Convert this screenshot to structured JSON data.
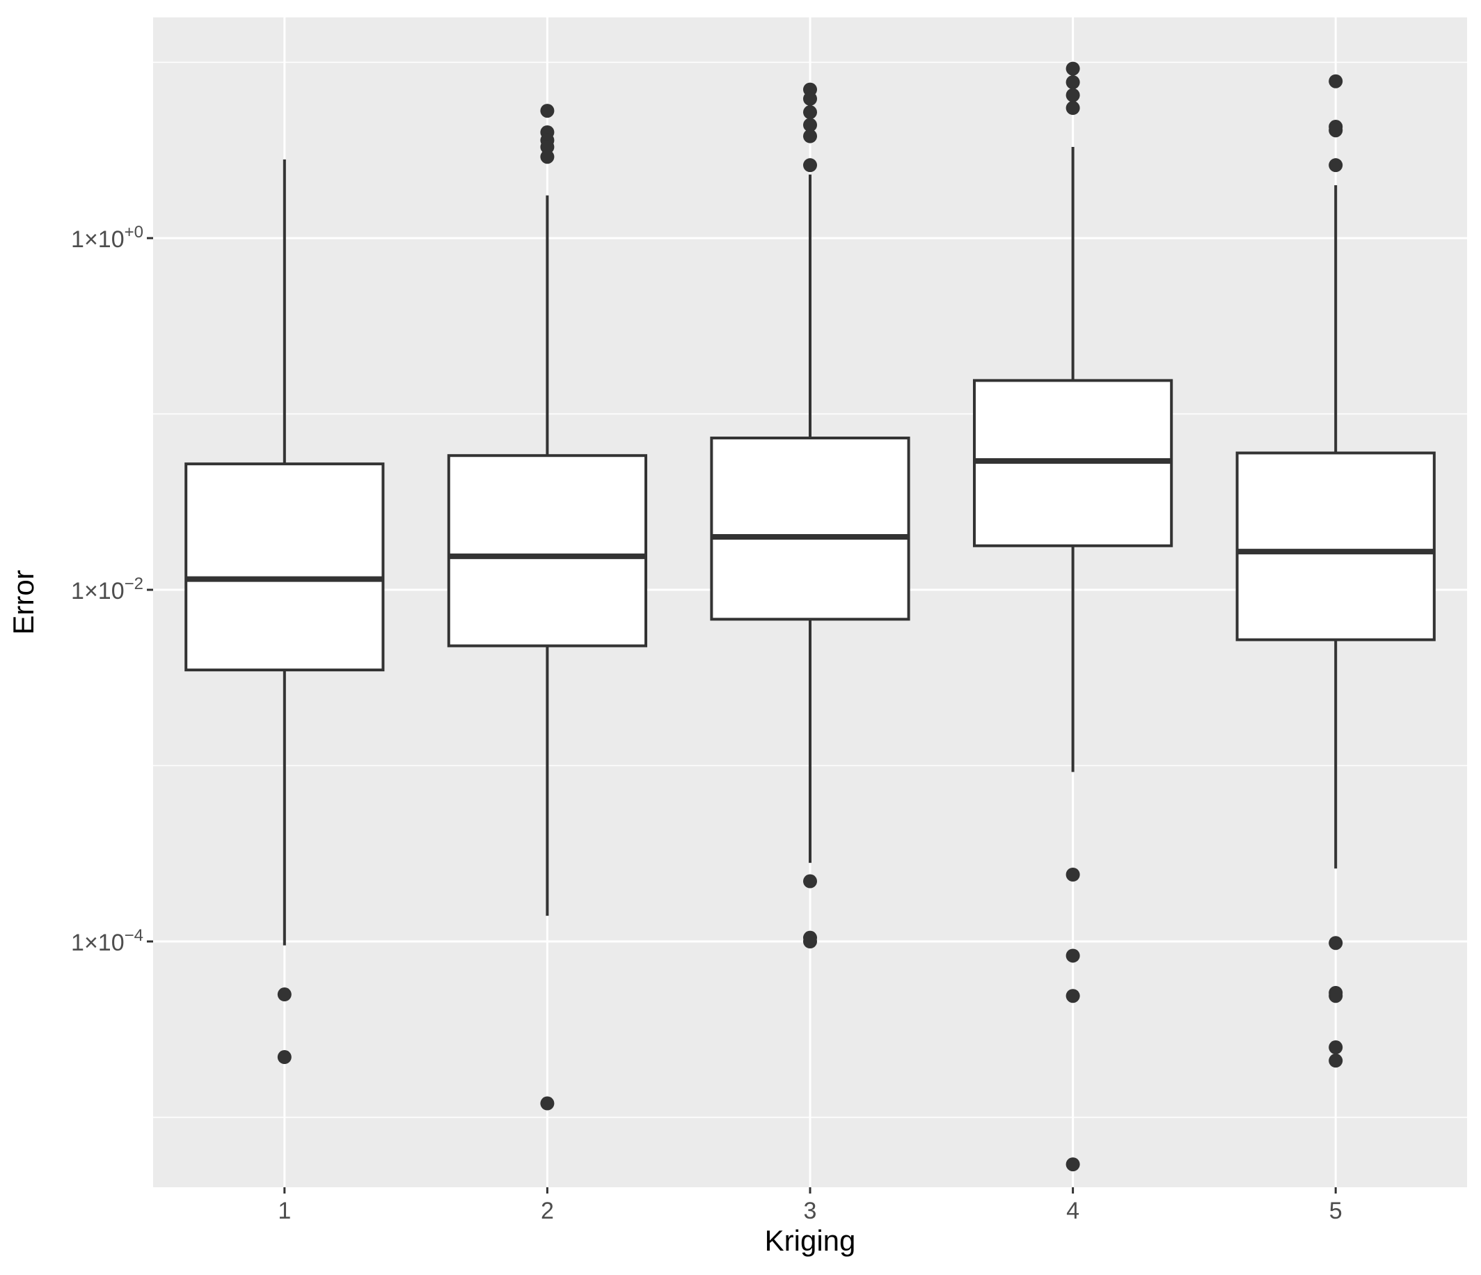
{
  "chart_data": {
    "type": "box",
    "xlabel": "Kriging",
    "ylabel": "Error",
    "categories": [
      "1",
      "2",
      "3",
      "4",
      "5"
    ],
    "y_scale": "log10",
    "ylim": [
      4e-06,
      18
    ],
    "y_ticks": [
      {
        "value": 1,
        "base": "1×10",
        "exp": "+0"
      },
      {
        "value": 0.01,
        "base": "1×10",
        "exp": "−2"
      },
      {
        "value": 0.0001,
        "base": "1×10",
        "exp": "−4"
      }
    ],
    "grid": true,
    "boxes": [
      {
        "category": "1",
        "lower_whisker": 9.5e-05,
        "q1": 0.0035,
        "median": 0.0115,
        "q3": 0.052,
        "upper_whisker": 2.8,
        "outliers": [
          5e-05,
          2.2e-05
        ]
      },
      {
        "category": "2",
        "lower_whisker": 0.00014,
        "q1": 0.0048,
        "median": 0.0155,
        "q3": 0.058,
        "upper_whisker": 1.75,
        "outliers": [
          5.3,
          4.0,
          3.6,
          3.3,
          2.9,
          1.2e-05
        ]
      },
      {
        "category": "3",
        "lower_whisker": 0.00028,
        "q1": 0.0068,
        "median": 0.02,
        "q3": 0.073,
        "upper_whisker": 2.3,
        "outliers": [
          7.0,
          6.2,
          5.2,
          4.4,
          3.8,
          2.6,
          0.00022,
          0.000105,
          0.0001
        ]
      },
      {
        "category": "4",
        "lower_whisker": 0.00092,
        "q1": 0.0178,
        "median": 0.054,
        "q3": 0.155,
        "upper_whisker": 3.3,
        "outliers": [
          9.2,
          7.7,
          6.5,
          5.5,
          0.00024,
          8.3e-05,
          4.9e-05,
          5.4e-06
        ]
      },
      {
        "category": "5",
        "lower_whisker": 0.00026,
        "q1": 0.0052,
        "median": 0.0165,
        "q3": 0.06,
        "upper_whisker": 2.0,
        "outliers": [
          7.8,
          4.3,
          4.1,
          2.6,
          9.8e-05,
          5.1e-05,
          4.9e-05,
          2.5e-05,
          2.1e-05
        ]
      }
    ]
  }
}
